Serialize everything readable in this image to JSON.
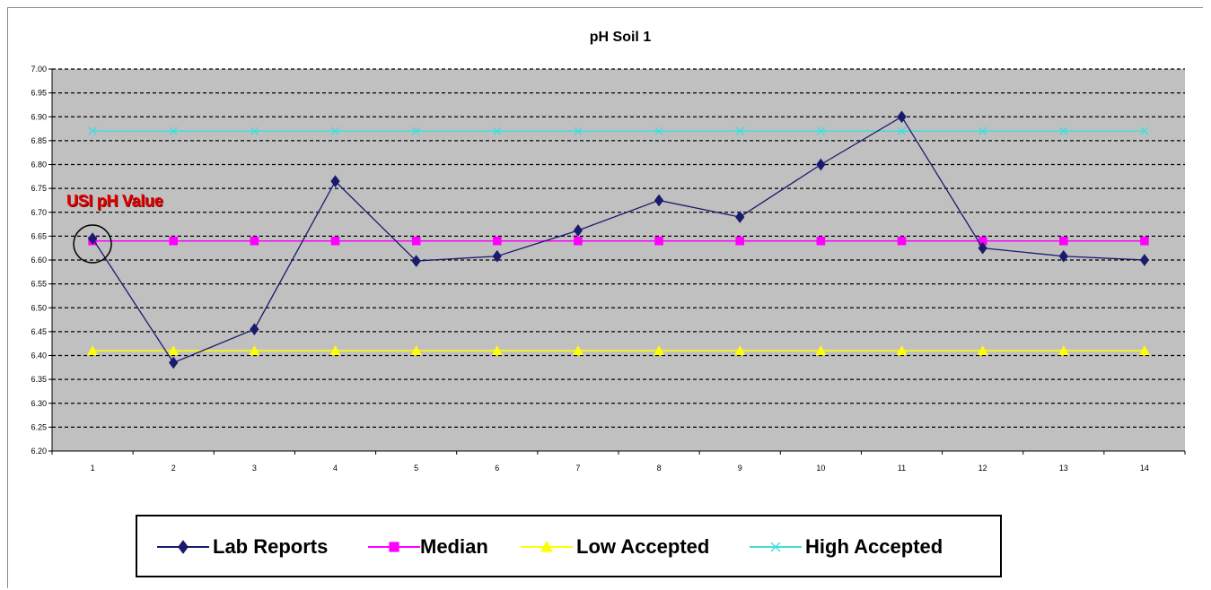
{
  "chart_data": {
    "type": "line",
    "title": "pH Soil 1",
    "xlabel": "",
    "ylabel": "",
    "categories": [
      "1",
      "2",
      "3",
      "4",
      "5",
      "6",
      "7",
      "8",
      "9",
      "10",
      "11",
      "12",
      "13",
      "14"
    ],
    "ylim": [
      6.2,
      7.0
    ],
    "y_ticks": [
      "6.20",
      "6.25",
      "6.30",
      "6.35",
      "6.40",
      "6.45",
      "6.50",
      "6.55",
      "6.60",
      "6.65",
      "6.70",
      "6.75",
      "6.80",
      "6.85",
      "6.90",
      "6.95",
      "7.00"
    ],
    "grid": "horizontal dashed",
    "plot_background": "#c0c0c0",
    "legend_position": "bottom",
    "series": [
      {
        "name": "Lab Reports",
        "color": "#1a1a6e",
        "marker": "diamond",
        "values": [
          6.645,
          6.385,
          6.455,
          6.765,
          6.598,
          6.608,
          6.662,
          6.725,
          6.69,
          6.8,
          6.9,
          6.625,
          6.608,
          6.6
        ]
      },
      {
        "name": "Median",
        "color": "#ff00ff",
        "marker": "square",
        "values": [
          6.64,
          6.64,
          6.64,
          6.64,
          6.64,
          6.64,
          6.64,
          6.64,
          6.64,
          6.64,
          6.64,
          6.64,
          6.64,
          6.64
        ]
      },
      {
        "name": "Low Accepted",
        "color": "#ffff00",
        "marker": "triangle",
        "values": [
          6.41,
          6.41,
          6.41,
          6.41,
          6.41,
          6.41,
          6.41,
          6.41,
          6.41,
          6.41,
          6.41,
          6.41,
          6.41,
          6.41
        ]
      },
      {
        "name": "High Accepted",
        "color": "#44dddd",
        "marker": "x",
        "values": [
          6.87,
          6.87,
          6.87,
          6.87,
          6.87,
          6.87,
          6.87,
          6.87,
          6.87,
          6.87,
          6.87,
          6.87,
          6.87,
          6.87
        ]
      }
    ],
    "annotations": [
      {
        "text": "USI pH Value",
        "color": "#e00000",
        "target_category": "1",
        "target_series": "Lab Reports"
      }
    ]
  }
}
